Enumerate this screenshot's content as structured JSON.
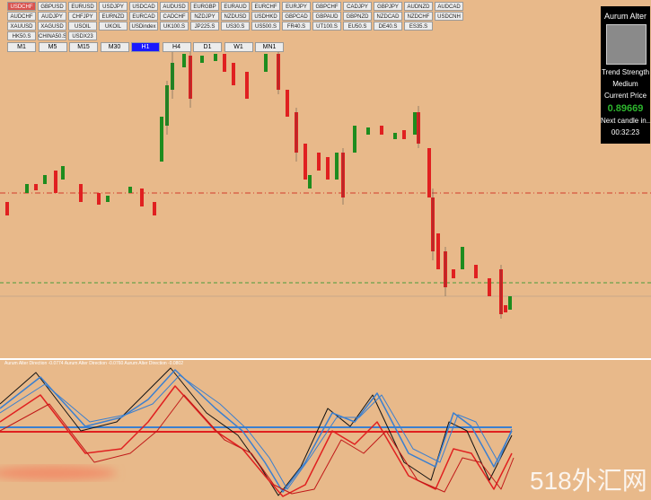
{
  "symbols": [
    [
      "USDCHF",
      "GBPUSD",
      "EURUSD",
      "USDJPY",
      "USDCAD",
      "AUDUSD",
      "EURGBP",
      "EURAUD",
      "EURCHF",
      "EURJPY",
      "GBPCHF",
      "CADJPY",
      "GBPJPY",
      "AUDNZD",
      "AUDCAD"
    ],
    [
      "AUDCHF",
      "AUDJPY",
      "CHFJPY",
      "EURNZD",
      "EURCAD",
      "CADCHF",
      "NZDJPY",
      "NZDUSD",
      "USDHKD",
      "GBPCAD",
      "GBPAUD",
      "GBPNZD",
      "NZDCAD",
      "NZDCHF",
      "USDCNH"
    ],
    [
      "XAUUSD",
      "XAGUSD",
      "USOIL",
      "UKOIL",
      "USDindex",
      "UK100.S",
      "JP225.S",
      "US30.S",
      "US500.S",
      "FR40.S",
      "UT100.S",
      "EU50.S",
      "DE40.S",
      "ES35.S"
    ],
    [
      "HK50.S",
      "CHINA50.S",
      "USDX23"
    ]
  ],
  "timeframes": [
    "M1",
    "M5",
    "M15",
    "M30",
    "H1",
    "H4",
    "D1",
    "W1",
    "MN1"
  ],
  "panel": {
    "title": "Aurum Alter",
    "strength_label": "Trend Strength",
    "strength": "Medium",
    "price_label": "Current Price",
    "price": "0.89669",
    "timer_label": "Next candle in...",
    "timer": "00:32:23"
  },
  "indicator_label": "Aurum Alter Direction -0.0774  Aurum Alter Direction -0.0760  Aurum Alter Direction -0.0802",
  "watermark": "518外汇网"
}
